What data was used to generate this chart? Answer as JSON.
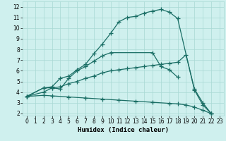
{
  "bg_color": "#cff0ee",
  "grid_color": "#a8d8d4",
  "line_color": "#1a6e65",
  "line_width": 0.9,
  "marker": "+",
  "marker_size": 4,
  "marker_ew": 0.9,
  "xlabel": "Humidex (Indice chaleur)",
  "xlabel_fontsize": 6.5,
  "tick_fontsize": 5.5,
  "xlim": [
    -0.5,
    23.5
  ],
  "ylim": [
    1.8,
    12.5
  ],
  "yticks": [
    2,
    3,
    4,
    5,
    6,
    7,
    8,
    9,
    10,
    11,
    12
  ],
  "xticks": [
    0,
    1,
    2,
    3,
    4,
    5,
    6,
    7,
    8,
    9,
    10,
    11,
    12,
    13,
    14,
    15,
    16,
    17,
    18,
    19,
    20,
    21,
    22,
    23
  ],
  "line1_x": [
    0,
    2,
    3,
    4,
    5,
    6,
    7,
    8,
    9,
    10,
    11,
    12,
    13,
    14,
    15,
    16,
    17,
    18,
    20,
    21,
    22
  ],
  "line1_y": [
    3.6,
    4.4,
    4.5,
    5.3,
    5.5,
    6.1,
    6.6,
    7.6,
    8.5,
    9.5,
    10.6,
    11.0,
    11.1,
    11.4,
    11.6,
    11.75,
    11.5,
    10.9,
    4.2,
    2.8,
    2.0
  ],
  "line2_x": [
    0,
    2,
    3,
    4,
    5,
    6,
    7,
    8,
    9,
    10,
    15,
    16,
    17,
    18
  ],
  "line2_y": [
    3.6,
    4.4,
    4.4,
    4.3,
    5.3,
    6.0,
    6.4,
    6.9,
    7.4,
    7.7,
    7.7,
    6.4,
    6.1,
    5.4
  ],
  "line3_x": [
    0,
    2,
    3,
    4,
    5,
    6,
    7,
    8,
    9,
    10,
    11,
    12,
    13,
    14,
    15,
    16,
    17,
    18,
    19,
    20,
    21,
    22
  ],
  "line3_y": [
    3.6,
    4.0,
    4.4,
    4.5,
    4.8,
    5.0,
    5.3,
    5.5,
    5.8,
    6.0,
    6.1,
    6.2,
    6.3,
    6.4,
    6.5,
    6.6,
    6.7,
    6.8,
    7.5,
    4.3,
    3.0,
    2.0
  ],
  "line4_x": [
    0,
    2,
    3,
    5,
    7,
    9,
    11,
    13,
    15,
    17,
    18,
    19,
    20,
    21,
    22
  ],
  "line4_y": [
    3.6,
    3.7,
    3.65,
    3.55,
    3.45,
    3.35,
    3.25,
    3.15,
    3.05,
    2.95,
    2.9,
    2.8,
    2.6,
    2.3,
    2.0
  ]
}
